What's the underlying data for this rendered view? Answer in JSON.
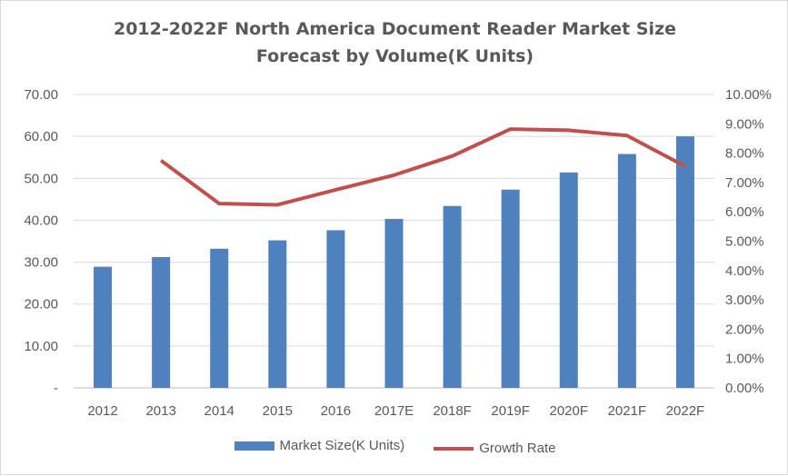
{
  "chart_data": {
    "type": "bar",
    "title_line1": "2012-2022F North America Document Reader Market Size",
    "title_line2": "Forecast by Volume(K Units)",
    "categories": [
      "2012",
      "2013",
      "2014",
      "2015",
      "2016",
      "2017E",
      "2018F",
      "2019F",
      "2020F",
      "2021F",
      "2022F"
    ],
    "series": [
      {
        "name": "Market Size(K Units)",
        "type": "bar",
        "axis": "left",
        "color": "#4f81bd",
        "values": [
          28.9,
          31.2,
          33.2,
          35.2,
          37.6,
          40.3,
          43.4,
          47.3,
          51.4,
          55.8,
          60.0
        ]
      },
      {
        "name": "Growth Rate",
        "type": "line",
        "axis": "right",
        "color": "#c0504d",
        "values": [
          null,
          7.75,
          6.28,
          6.24,
          6.75,
          7.25,
          7.9,
          8.82,
          8.78,
          8.6,
          7.55
        ]
      }
    ],
    "left_axis": {
      "ylim": [
        0,
        70
      ],
      "tick_labels": [
        "-",
        "10.00",
        "20.00",
        "30.00",
        "40.00",
        "50.00",
        "60.00",
        "70.00"
      ]
    },
    "right_axis": {
      "ylim": [
        0,
        10
      ],
      "tick_labels": [
        "0.00%",
        "1.00%",
        "2.00%",
        "3.00%",
        "4.00%",
        "5.00%",
        "6.00%",
        "7.00%",
        "8.00%",
        "9.00%",
        "10.00%"
      ]
    },
    "grid": true,
    "legend": "bottom"
  }
}
